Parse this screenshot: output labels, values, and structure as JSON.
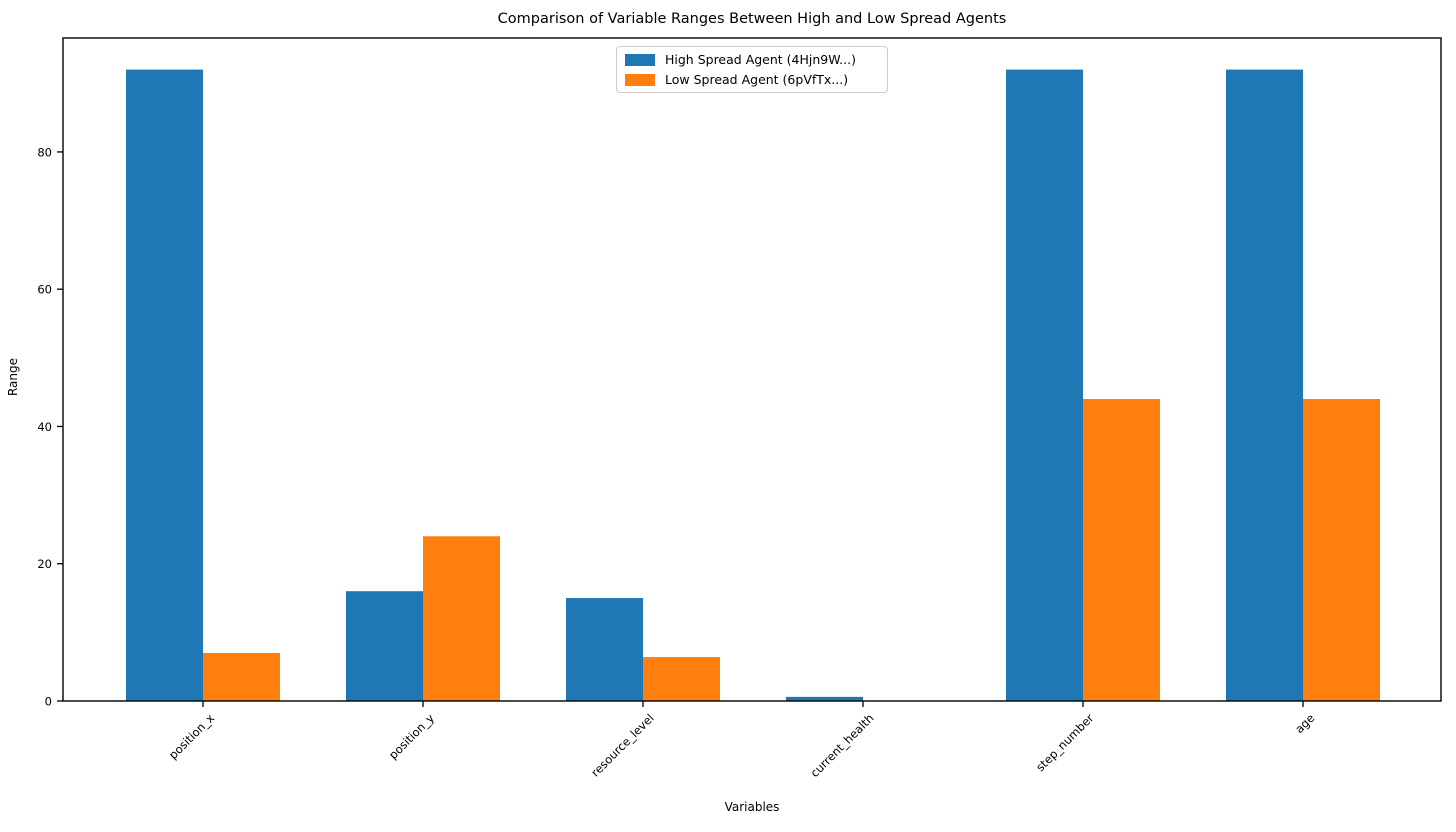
{
  "figure": {
    "background": "#ffffff"
  },
  "chart_data": {
    "type": "bar",
    "title": "Comparison of Variable Ranges Between High and Low Spread Agents",
    "xlabel": "Variables",
    "ylabel": "Range",
    "categories": [
      "position_x",
      "position_y",
      "resource_level",
      "current_health",
      "step_number",
      "age"
    ],
    "series": [
      {
        "name": "High Spread Agent (4Hjn9W...)",
        "color": "#1f77b4",
        "values": [
          92,
          16,
          15,
          0.6,
          92,
          92
        ]
      },
      {
        "name": "Low Spread Agent (6pVfTx...)",
        "color": "#ff7f0e",
        "values": [
          7,
          24,
          6.4,
          0,
          44,
          44
        ]
      }
    ],
    "yticks": [
      0,
      20,
      40,
      60,
      80
    ],
    "ylim": [
      0,
      96.6
    ],
    "bar_width": 0.35,
    "grid": false,
    "legend_position": "upper center",
    "x_tick_rotation": 45,
    "axis_color": "#000000"
  }
}
